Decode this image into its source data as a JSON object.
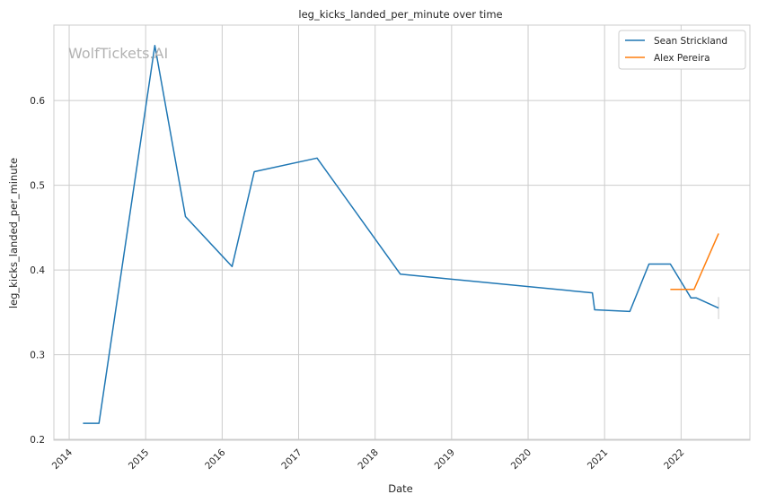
{
  "chart_data": {
    "type": "line",
    "title": "leg_kicks_landed_per_minute over time",
    "xlabel": "Date",
    "ylabel": "leg_kicks_landed_per_minute",
    "watermark": "WolfTickets.AI",
    "xlim": [
      2013.8,
      2022.9
    ],
    "ylim": [
      0.199,
      0.689
    ],
    "x_ticks": [
      {
        "value": 2014,
        "label": "2014"
      },
      {
        "value": 2015,
        "label": "2015"
      },
      {
        "value": 2016,
        "label": "2016"
      },
      {
        "value": 2017,
        "label": "2017"
      },
      {
        "value": 2018,
        "label": "2018"
      },
      {
        "value": 2019,
        "label": "2019"
      },
      {
        "value": 2020,
        "label": "2020"
      },
      {
        "value": 2021,
        "label": "2021"
      },
      {
        "value": 2022,
        "label": "2022"
      }
    ],
    "y_ticks": [
      {
        "value": 0.2,
        "label": "0.2"
      },
      {
        "value": 0.3,
        "label": "0.3"
      },
      {
        "value": 0.4,
        "label": "0.4"
      },
      {
        "value": 0.5,
        "label": "0.5"
      },
      {
        "value": 0.6,
        "label": "0.6"
      }
    ],
    "grid": true,
    "legend_position": "top-right",
    "series": [
      {
        "name": "Sean Strickland",
        "color": "#1f77b4",
        "points": [
          [
            2014.18,
            0.219
          ],
          [
            2014.39,
            0.219
          ],
          [
            2015.12,
            0.665
          ],
          [
            2015.52,
            0.463
          ],
          [
            2016.13,
            0.404
          ],
          [
            2016.42,
            0.516
          ],
          [
            2017.24,
            0.532
          ],
          [
            2018.33,
            0.395
          ],
          [
            2020.84,
            0.373
          ],
          [
            2020.87,
            0.353
          ],
          [
            2021.33,
            0.351
          ],
          [
            2021.58,
            0.407
          ],
          [
            2021.86,
            0.407
          ],
          [
            2022.13,
            0.367
          ],
          [
            2022.2,
            0.367
          ],
          [
            2022.49,
            0.355
          ]
        ]
      },
      {
        "name": "Alex Pereira",
        "color": "#ff7f0e",
        "points": [
          [
            2021.86,
            0.377
          ],
          [
            2022.17,
            0.377
          ],
          [
            2022.49,
            0.443
          ]
        ]
      }
    ],
    "error_bars": [
      {
        "x": 2022.49,
        "low": 0.342,
        "high": 0.368,
        "color": "#cccccc"
      }
    ]
  }
}
